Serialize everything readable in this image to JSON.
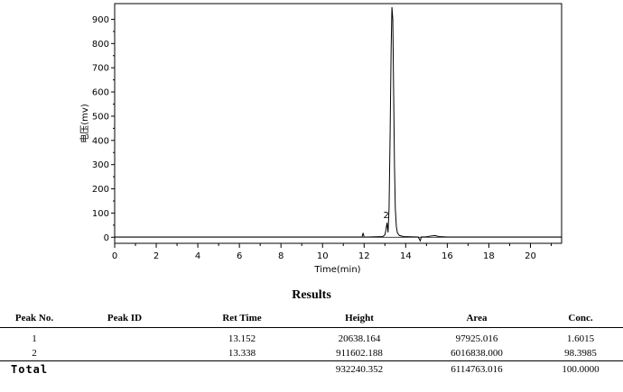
{
  "chart_data": {
    "type": "line",
    "xlabel": "Time(min)",
    "ylabel": "电压(mv)",
    "xlim": [
      0,
      21.5
    ],
    "ylim": [
      -25,
      965
    ],
    "x_ticks": [
      0,
      2,
      4,
      6,
      8,
      10,
      12,
      14,
      16,
      18,
      20
    ],
    "y_ticks": [
      0,
      100,
      200,
      300,
      400,
      500,
      600,
      700,
      800,
      900
    ],
    "grid": false,
    "baseline": 0,
    "series": [
      {
        "x": [
          0,
          11.6,
          11.9,
          11.95,
          12.0,
          12.2,
          12.9,
          13.0,
          13.05,
          13.1,
          13.152,
          13.2,
          13.25,
          13.3,
          13.338,
          13.38,
          13.42,
          13.46,
          13.5,
          13.55,
          13.6,
          13.7,
          13.9,
          14.2,
          14.6,
          14.7,
          14.75,
          15.0,
          15.2,
          15.4,
          15.6,
          16.0,
          18.0,
          21.5
        ],
        "y": [
          1,
          1,
          1,
          18,
          1,
          1,
          3,
          10,
          30,
          60,
          20,
          120,
          420,
          780,
          950,
          900,
          600,
          300,
          120,
          45,
          18,
          7,
          3,
          2,
          1,
          -15,
          1,
          2,
          5,
          7,
          3,
          1,
          1,
          1
        ]
      }
    ],
    "annotations": [
      "2"
    ]
  },
  "results": {
    "title": "Results",
    "headers": [
      "Peak No.",
      "Peak ID",
      "Ret Time",
      "Height",
      "Area",
      "Conc."
    ],
    "rows": [
      [
        "1",
        "",
        "13.152",
        "20638.164",
        "97925.016",
        "1.6015"
      ],
      [
        "2",
        "",
        "13.338",
        "911602.188",
        "6016838.000",
        "98.3985"
      ]
    ],
    "total": {
      "label": "Total",
      "height": "932240.352",
      "area": "6114763.016",
      "conc": "100.0000"
    }
  }
}
